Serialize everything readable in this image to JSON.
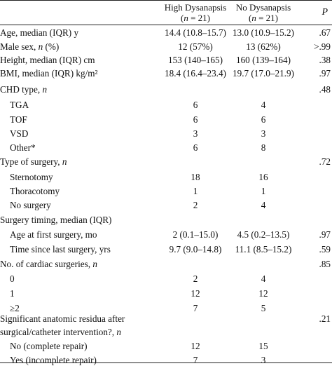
{
  "header": {
    "col1_line1": "High Dysanapsis",
    "col1_line2": "(n = 21)",
    "col2_line1": "No Dysanapsis",
    "col2_line2": "(n = 21)",
    "col_p": "P"
  },
  "rows": [
    {
      "label": "Age, median (IQR) y",
      "c1": "14.4 (10.8–15.7)",
      "c2": "13.0 (10.9–15.2)",
      "p": ".67"
    },
    {
      "label": "Male sex, n (%)",
      "c1": "12 (57%)",
      "c2": "13 (62%)",
      "p": ">.99"
    },
    {
      "label": "Height, median (IQR) cm",
      "c1": "153 (140–165)",
      "c2": "160 (139–164)",
      "p": ".38"
    },
    {
      "label": "BMI, median (IQR) kg/m²",
      "c1": "18.4 (16.4–23.4)",
      "c2": "19.7 (17.0–21.9)",
      "p": ".97"
    },
    {
      "label": "CHD type, n",
      "c1": "",
      "c2": "",
      "p": ".48"
    },
    {
      "label": "TGA",
      "c1": "6",
      "c2": "4",
      "p": ""
    },
    {
      "label": "TOF",
      "c1": "6",
      "c2": "6",
      "p": ""
    },
    {
      "label": "VSD",
      "c1": "3",
      "c2": "3",
      "p": ""
    },
    {
      "label": "Other*",
      "c1": "6",
      "c2": "8",
      "p": ""
    },
    {
      "label": "Type of surgery, n",
      "c1": "",
      "c2": "",
      "p": ".72"
    },
    {
      "label": "Sternotomy",
      "c1": "18",
      "c2": "16",
      "p": ""
    },
    {
      "label": "Thoracotomy",
      "c1": "1",
      "c2": "1",
      "p": ""
    },
    {
      "label": "No surgery",
      "c1": "2",
      "c2": "4",
      "p": ""
    },
    {
      "label": "Surgery timing, median (IQR)",
      "c1": "",
      "c2": "",
      "p": ""
    },
    {
      "label": "Age at first surgery, mo",
      "c1": "2 (0.1–15.0)",
      "c2": "4.5 (0.2–13.5)",
      "p": ".97"
    },
    {
      "label": "Time since last surgery, yrs",
      "c1": "9.7 (9.0–14.8)",
      "c2": "11.1 (8.5–15.2)",
      "p": ".59"
    },
    {
      "label": "No. of cardiac surgeries, n",
      "c1": "",
      "c2": "",
      "p": ".85"
    },
    {
      "label": "0",
      "c1": "2",
      "c2": "4",
      "p": ""
    },
    {
      "label": "1",
      "c1": "12",
      "c2": "12",
      "p": ""
    },
    {
      "label": "≥2",
      "c1": "7",
      "c2": "5",
      "p": ""
    },
    {
      "label": "Significant anatomic residua after",
      "c1": "",
      "c2": "",
      "p": ".21"
    },
    {
      "label": "surgical/catheter intervention?, n",
      "c1": "",
      "c2": "",
      "p": ""
    },
    {
      "label": "No (complete repair)",
      "c1": "12",
      "c2": "15",
      "p": ""
    },
    {
      "label": "Yes (incomplete repair)",
      "c1": "7",
      "c2": "3",
      "p": ""
    }
  ]
}
